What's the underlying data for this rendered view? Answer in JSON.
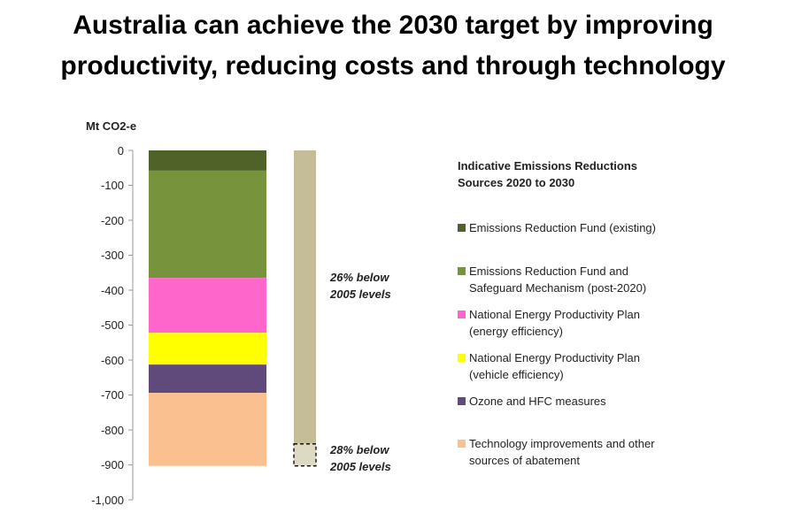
{
  "chart_data": {
    "type": "stacked-bar",
    "title": "Australia can achieve the 2030 target by improving productivity, reducing costs and through technology",
    "y_label": "Mt CO2-e",
    "legend_title": "Indicative Emissions Reductions Sources 2020 to 2030",
    "categories": [
      null,
      null
    ],
    "ylim": [
      0,
      -1000
    ],
    "yticks": [
      0,
      -100,
      -200,
      -300,
      -400,
      -500,
      -600,
      -700,
      -800,
      -900,
      {
        "value": -1000,
        "label": "-1,000"
      }
    ],
    "grid": false,
    "series": [
      {
        "name": "Emissions Reduction Fund (existing)",
        "color": "#4f6228",
        "values": [
          -58,
          null
        ]
      },
      {
        "name": "Emissions Reduction Fund and Safeguard Mechanism (post-2020)",
        "color": "#77933c",
        "values": [
          -307,
          null
        ]
      },
      {
        "name": "National Energy Productivity Plan (energy efficiency)",
        "color": "#ff66cc",
        "values": [
          -157,
          null
        ]
      },
      {
        "name": "National Energy Productivity Plan (vehicle efficiency)",
        "color": "#ffff00",
        "values": [
          -91,
          null
        ]
      },
      {
        "name": "Ozone and HFC measures",
        "color": "#604a7b",
        "values": [
          -81,
          null
        ]
      },
      {
        "name": "Technology improvements and other sources of abatement",
        "color": "#fac090",
        "values": [
          -209,
          null
        ]
      }
    ],
    "target": {
      "values": [
        -840,
        -63
      ],
      "labels": [
        "26% below 2005 levels",
        "28% below 2005 levels"
      ],
      "colors": [
        "#c4bd97",
        "#ddd9c3"
      ]
    }
  }
}
